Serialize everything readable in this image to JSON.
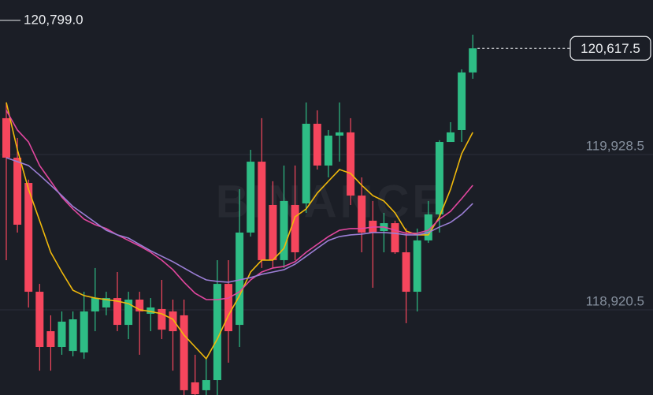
{
  "chart_data": {
    "type": "candlestick",
    "watermark": "BINANCE",
    "open": [
      120164,
      119908,
      119744,
      119038,
      118782,
      118680,
      118654,
      118644,
      118910,
      118936,
      118997,
      118823,
      118987,
      118895,
      118926,
      118910,
      118885,
      118450,
      118399,
      118465,
      119089,
      118823,
      119422,
      119882,
      119601,
      119243,
      119601,
      119611,
      120128,
      119857,
      120051,
      120072,
      119662,
      119499,
      119432,
      119483,
      119294,
      119038,
      119371,
      119540,
      120010,
      120087,
      120461
    ],
    "high": [
      120266,
      120036,
      119765,
      119089,
      118885,
      118910,
      118910,
      119038,
      119192,
      119038,
      119166,
      119038,
      119038,
      118997,
      119115,
      118987,
      118987,
      118629,
      118603,
      119243,
      119243,
      119703,
      119959,
      120164,
      119755,
      119857,
      119857,
      120266,
      120215,
      120087,
      120266,
      120164,
      119780,
      119627,
      119550,
      119499,
      119448,
      119448,
      119627,
      120021,
      120138,
      120481,
      120706
    ],
    "low": [
      119243,
      119422,
      118936,
      118526,
      118526,
      118629,
      118619,
      118603,
      118782,
      118885,
      118782,
      118731,
      118629,
      118782,
      118731,
      118526,
      118340,
      118340,
      118340,
      118340,
      118578,
      118680,
      119396,
      119192,
      119192,
      119192,
      119243,
      119550,
      119831,
      119780,
      119882,
      119601,
      119294,
      119064,
      119294,
      119284,
      118834,
      118910,
      119355,
      119422,
      120010,
      120010,
      120420
    ],
    "close": [
      119908,
      119473,
      119038,
      118680,
      118680,
      118844,
      118859,
      118910,
      118997,
      118997,
      118823,
      118987,
      118910,
      118936,
      118792,
      118782,
      118399,
      118373,
      118465,
      119089,
      118782,
      119422,
      119882,
      119243,
      119243,
      119627,
      119294,
      120128,
      119857,
      120051,
      120072,
      119662,
      119422,
      119422,
      119483,
      119294,
      119038,
      119371,
      119540,
      120010,
      120072,
      120461,
      120617.5
    ],
    "up_color": "#2ebd85",
    "down_color": "#f6465d",
    "moving_averages": [
      {
        "color": "#f0b90b",
        "values": [
          120266,
          119959,
          119703,
          119499,
          119294,
          119166,
          119048,
          119013,
          118997,
          118987,
          118977,
          118961,
          118921,
          118910,
          118895,
          118859,
          118757,
          118680,
          118603,
          118731,
          118885,
          119013,
          119166,
          119243,
          119243,
          119320,
          119524,
          119575,
          119678,
          119755,
          119831,
          119806,
          119729,
          119662,
          119627,
          119550,
          119432,
          119407,
          119407,
          119524,
          119703,
          119934,
          120072
        ]
      },
      {
        "color": "#e2479f",
        "values": [
          120215,
          120087,
          120010,
          119857,
          119755,
          119652,
          119575,
          119509,
          119473,
          119448,
          119407,
          119371,
          119335,
          119294,
          119243,
          119181,
          119100,
          119028,
          118987,
          118987,
          118997,
          119038,
          119115,
          119166,
          119192,
          119202,
          119233,
          119294,
          119345,
          119396,
          119437,
          119448,
          119448,
          119458,
          119458,
          119437,
          119417,
          119417,
          119437,
          119509,
          119560,
          119642,
          119729
        ]
      },
      {
        "color": "#9c7fd6",
        "values": [
          119908,
          119882,
          119857,
          119795,
          119729,
          119662,
          119591,
          119540,
          119488,
          119437,
          119407,
          119386,
          119345,
          119304,
          119268,
          119233,
          119192,
          119151,
          119115,
          119105,
          119100,
          119115,
          119130,
          119151,
          119166,
          119181,
          119217,
          119268,
          119320,
          119371,
          119396,
          119407,
          119412,
          119422,
          119422,
          119417,
          119407,
          119407,
          119422,
          119458,
          119488,
          119540,
          119611
        ]
      }
    ],
    "ylim": [
      118368,
      120931
    ],
    "yticks": [
      {
        "value": 119928.5,
        "label": "119,928.5"
      },
      {
        "value": 118920.5,
        "label": "118,920.5"
      }
    ],
    "grid": true,
    "high_marker": {
      "value": 120799.0,
      "label": "120,799.0"
    },
    "price_line": {
      "value": 120617.5,
      "label": "120,617.5"
    }
  }
}
